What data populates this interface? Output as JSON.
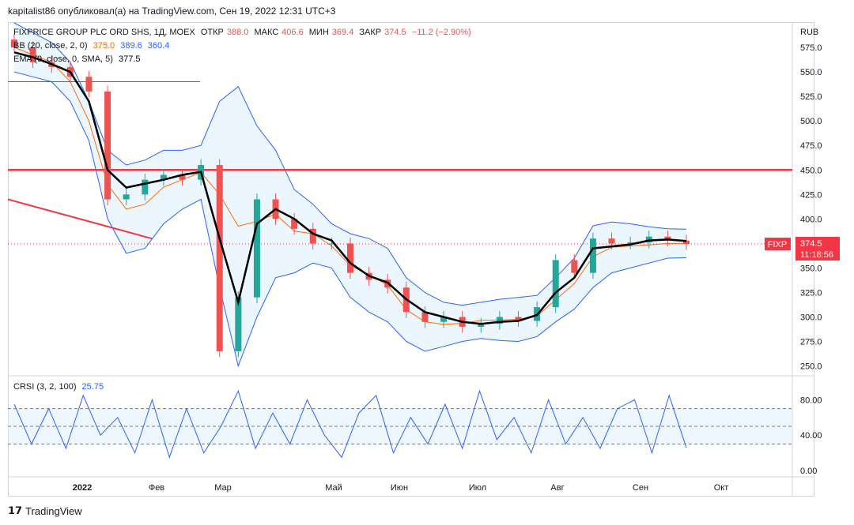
{
  "header": {
    "published_line": "kapitalist86 опубликовал(а) на TradingView.com, Сен 19, 2022 12:31 UTC+3"
  },
  "legend": {
    "symbol_line": {
      "name": "FIXPRICE GROUP PLC ORD SHS, 1Д, MOEX",
      "open_label": "ОТКР",
      "open": "388.0",
      "high_label": "МАКС",
      "high": "406.6",
      "low_label": "МИН",
      "low": "369.4",
      "close_label": "ЗАКР",
      "close": "374.5",
      "change": "−11.2 (−2.90%)"
    },
    "bb_line": {
      "label": "BB (20, close, 2, 0)",
      "v1": "375.0",
      "v2": "389.6",
      "v3": "360.4"
    },
    "ema_line": {
      "label": "EMA (9, close, 0, SMA, 5)",
      "v1": "377.5"
    },
    "crsi_line": {
      "label": "CRSI (3, 2, 100)",
      "v1": "25.75"
    }
  },
  "price_axis": {
    "currency": "RUB",
    "ticks": [
      "575.0",
      "550.0",
      "525.0",
      "500.0",
      "475.0",
      "450.0",
      "425.0",
      "400.0",
      "375.0",
      "350.0",
      "325.0",
      "300.0",
      "275.0",
      "250.0"
    ],
    "ticker_badge": "FIXP",
    "last_price": "374.5",
    "countdown": "11:18:56"
  },
  "crsi_axis": {
    "ticks": [
      "80.00",
      "40.00",
      "0.00"
    ]
  },
  "time_axis": {
    "labels": [
      "2022",
      "Фев",
      "Мар",
      "Май",
      "Июн",
      "Июл",
      "Авг",
      "Сен",
      "Окт"
    ]
  },
  "footer": {
    "brand": "TradingView"
  },
  "colors": {
    "up": "#26a69a",
    "down": "#ef5350",
    "bb": "#2962ff",
    "bb_fill": "#e3f2fd",
    "ema": "#000000",
    "basis": "#ff6d00",
    "level": "#f23645",
    "crsi": "#2962ff"
  },
  "chart_data": [
    {
      "type": "candlestick",
      "title": "FIXPRICE GROUP PLC ORD SHS, 1Д, MOEX",
      "x": [
        "2021-12-20",
        "2021-12-27",
        "2022-01-03",
        "2022-01-10",
        "2022-01-17",
        "2022-01-24",
        "2022-01-31",
        "2022-02-07",
        "2022-02-14",
        "2022-02-21",
        "2022-02-25",
        "2022-03-01",
        "2022-03-24",
        "2022-03-31",
        "2022-04-07",
        "2022-04-14",
        "2022-04-21",
        "2022-04-28",
        "2022-05-12",
        "2022-05-19",
        "2022-05-26",
        "2022-06-02",
        "2022-06-09",
        "2022-06-16",
        "2022-06-23",
        "2022-06-30",
        "2022-07-07",
        "2022-07-14",
        "2022-07-21",
        "2022-07-28",
        "2022-08-04",
        "2022-08-11",
        "2022-08-18",
        "2022-08-25",
        "2022-09-01",
        "2022-09-08",
        "2022-09-15"
      ],
      "series": [
        {
          "name": "close",
          "values": [
            575,
            560,
            555,
            545,
            530,
            420,
            425,
            440,
            445,
            440,
            455,
            265,
            320,
            420,
            400,
            390,
            375,
            375,
            345,
            338,
            330,
            305,
            295,
            300,
            290,
            293,
            300,
            296,
            310,
            358,
            345,
            380,
            375,
            376,
            382,
            378,
            374.5
          ]
        },
        {
          "name": "EMA (9, close, 0, SMA, 5)",
          "values": [
            570,
            565,
            558,
            550,
            520,
            450,
            432,
            436,
            440,
            445,
            448,
            380,
            315,
            395,
            410,
            400,
            385,
            378,
            355,
            342,
            335,
            318,
            305,
            300,
            295,
            293,
            295,
            296,
            302,
            325,
            340,
            370,
            372,
            374,
            378,
            379,
            377.5
          ]
        },
        {
          "name": "BB upper",
          "values": [
            600,
            590,
            580,
            560,
            520,
            470,
            455,
            460,
            470,
            470,
            475,
            520,
            535,
            495,
            470,
            430,
            415,
            395,
            385,
            380,
            370,
            340,
            325,
            315,
            312,
            315,
            318,
            320,
            322,
            340,
            360,
            393,
            397,
            395,
            392,
            390,
            389.6
          ]
        },
        {
          "name": "BB lower",
          "values": [
            550,
            545,
            540,
            520,
            480,
            400,
            365,
            370,
            395,
            410,
            420,
            330,
            250,
            300,
            340,
            345,
            355,
            350,
            320,
            305,
            295,
            275,
            265,
            270,
            275,
            278,
            276,
            275,
            280,
            295,
            308,
            330,
            345,
            350,
            355,
            360,
            360.4
          ]
        }
      ],
      "levels": [
        450,
        540
      ],
      "ylim": [
        240,
        600
      ],
      "y_unit": "RUB"
    },
    {
      "type": "line",
      "title": "CRSI (3, 2, 100)",
      "series": [
        {
          "name": "CRSI (3, 2, 100)",
          "values": [
            75,
            30,
            70,
            25,
            85,
            40,
            60,
            20,
            80,
            15,
            70,
            20,
            50,
            90,
            25,
            65,
            30,
            80,
            40,
            15,
            65,
            85,
            20,
            60,
            30,
            75,
            25,
            90,
            35,
            60,
            20,
            80,
            30,
            60,
            25,
            70,
            80,
            20,
            85,
            25.75
          ]
        }
      ],
      "levels": [
        70,
        50,
        30
      ],
      "ylim": [
        0,
        100
      ]
    }
  ]
}
